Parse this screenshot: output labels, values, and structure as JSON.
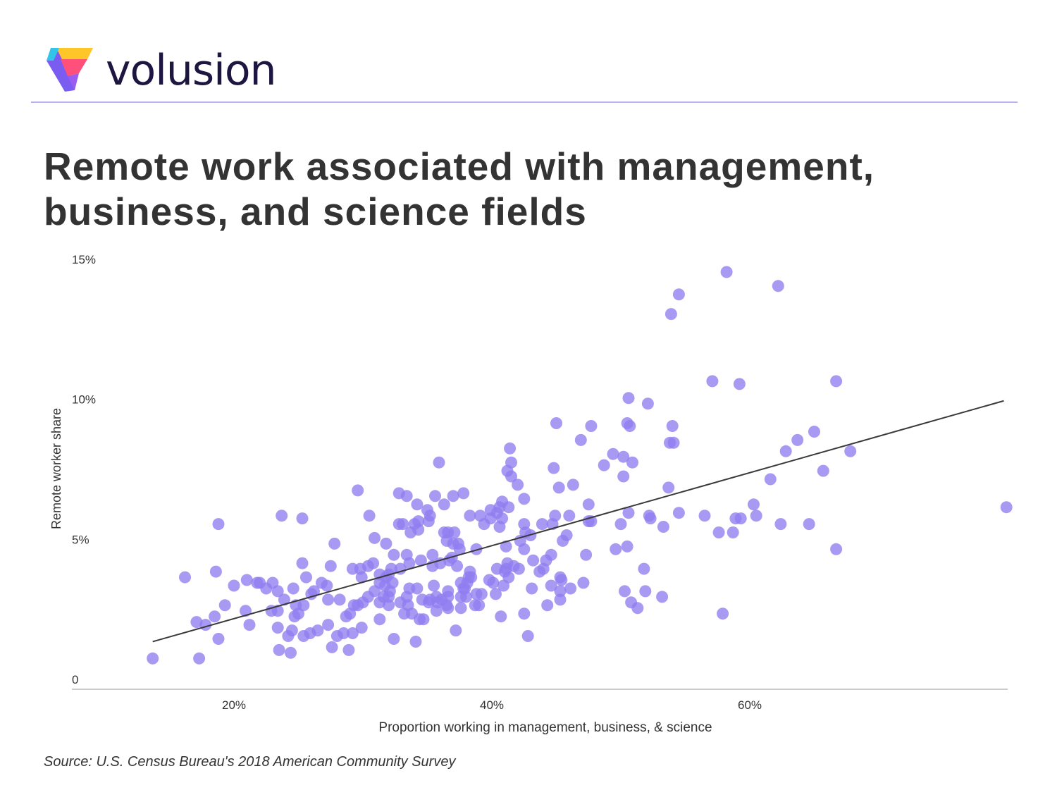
{
  "brand": {
    "name": "volusion"
  },
  "title": "Remote work associated with management, business, and science fields",
  "source": "Source: U.S. Census Bureau's 2018 American Community Survey",
  "colors": {
    "point": "#8f7cf0",
    "trendline": "#3a3a3a",
    "axis": "#cccccc",
    "text": "#333333",
    "rule": "#b8b3ee"
  },
  "chart_data": {
    "type": "scatter",
    "title": "Remote work associated with management, business, and science fields",
    "xlabel": "Proportion working in management, business, & science",
    "ylabel": "Remote worker share",
    "xlim": [
      7.5,
      80
    ],
    "ylim": [
      0,
      15
    ],
    "x_ticks": [
      {
        "value": 20,
        "label": "20%"
      },
      {
        "value": 40,
        "label": "40%"
      },
      {
        "value": 60,
        "label": "60%"
      }
    ],
    "y_ticks": [
      {
        "value": 0,
        "label": "0"
      },
      {
        "value": 5,
        "label": "5%"
      },
      {
        "value": 10,
        "label": "10%"
      },
      {
        "value": 15,
        "label": "15%"
      }
    ],
    "grid": false,
    "trendline": {
      "x": [
        13.7,
        79.7
      ],
      "y": [
        1.7,
        10.3
      ]
    },
    "points": [
      [
        58.2,
        14.9
      ],
      [
        62.2,
        14.4
      ],
      [
        54.5,
        14.1
      ],
      [
        53.9,
        13.4
      ],
      [
        57.1,
        11.0
      ],
      [
        59.2,
        10.9
      ],
      [
        66.7,
        11.0
      ],
      [
        50.6,
        10.4
      ],
      [
        52.1,
        10.2
      ],
      [
        45.0,
        9.5
      ],
      [
        47.7,
        9.4
      ],
      [
        50.5,
        9.5
      ],
      [
        50.7,
        9.4
      ],
      [
        54.0,
        9.4
      ],
      [
        65.0,
        9.2
      ],
      [
        63.7,
        8.9
      ],
      [
        46.9,
        8.9
      ],
      [
        53.8,
        8.8
      ],
      [
        54.1,
        8.8
      ],
      [
        41.4,
        8.6
      ],
      [
        62.8,
        8.5
      ],
      [
        67.8,
        8.5
      ],
      [
        49.4,
        8.4
      ],
      [
        50.2,
        8.3
      ],
      [
        50.9,
        8.1
      ],
      [
        48.7,
        8.0
      ],
      [
        35.9,
        8.1
      ],
      [
        41.5,
        8.1
      ],
      [
        41.2,
        7.8
      ],
      [
        44.8,
        7.9
      ],
      [
        65.7,
        7.8
      ],
      [
        41.5,
        7.6
      ],
      [
        50.2,
        7.6
      ],
      [
        61.6,
        7.5
      ],
      [
        42.0,
        7.3
      ],
      [
        46.3,
        7.3
      ],
      [
        45.2,
        7.2
      ],
      [
        53.7,
        7.2
      ],
      [
        29.6,
        7.1
      ],
      [
        32.8,
        7.0
      ],
      [
        33.4,
        6.9
      ],
      [
        35.6,
        6.9
      ],
      [
        37.0,
        6.9
      ],
      [
        37.8,
        7.0
      ],
      [
        42.5,
        6.8
      ],
      [
        40.8,
        6.7
      ],
      [
        34.2,
        6.6
      ],
      [
        36.3,
        6.6
      ],
      [
        40.6,
        6.5
      ],
      [
        41.3,
        6.5
      ],
      [
        47.5,
        6.6
      ],
      [
        60.3,
        6.6
      ],
      [
        79.9,
        6.5
      ],
      [
        35.0,
        6.4
      ],
      [
        39.9,
        6.4
      ],
      [
        40.4,
        6.3
      ],
      [
        30.5,
        6.2
      ],
      [
        35.2,
        6.2
      ],
      [
        38.3,
        6.2
      ],
      [
        39.1,
        6.2
      ],
      [
        44.9,
        6.2
      ],
      [
        46.0,
        6.2
      ],
      [
        50.6,
        6.3
      ],
      [
        52.2,
        6.2
      ],
      [
        54.5,
        6.3
      ],
      [
        56.5,
        6.2
      ],
      [
        60.5,
        6.2
      ],
      [
        23.7,
        6.2
      ],
      [
        25.3,
        6.1
      ],
      [
        34.3,
        6.0
      ],
      [
        35.1,
        6.0
      ],
      [
        39.9,
        6.1
      ],
      [
        40.8,
        6.1
      ],
      [
        52.3,
        6.1
      ],
      [
        58.9,
        6.1
      ],
      [
        59.3,
        6.1
      ],
      [
        18.8,
        5.9
      ],
      [
        32.8,
        5.9
      ],
      [
        33.1,
        5.9
      ],
      [
        34.0,
        5.9
      ],
      [
        39.4,
        5.9
      ],
      [
        40.6,
        5.8
      ],
      [
        42.5,
        5.9
      ],
      [
        43.9,
        5.9
      ],
      [
        44.7,
        5.9
      ],
      [
        47.5,
        6.0
      ],
      [
        47.7,
        6.0
      ],
      [
        50.0,
        5.9
      ],
      [
        53.3,
        5.8
      ],
      [
        62.4,
        5.9
      ],
      [
        64.6,
        5.9
      ],
      [
        33.7,
        5.6
      ],
      [
        34.3,
        5.7
      ],
      [
        36.3,
        5.6
      ],
      [
        36.6,
        5.6
      ],
      [
        37.1,
        5.6
      ],
      [
        42.6,
        5.6
      ],
      [
        43.0,
        5.5
      ],
      [
        45.8,
        5.5
      ],
      [
        57.6,
        5.6
      ],
      [
        58.7,
        5.6
      ],
      [
        30.9,
        5.4
      ],
      [
        36.5,
        5.3
      ],
      [
        37.0,
        5.2
      ],
      [
        37.4,
        5.2
      ],
      [
        42.2,
        5.3
      ],
      [
        45.5,
        5.3
      ],
      [
        31.8,
        5.2
      ],
      [
        27.8,
        5.2
      ],
      [
        38.8,
        5.0
      ],
      [
        41.1,
        5.1
      ],
      [
        42.5,
        5.0
      ],
      [
        49.6,
        5.0
      ],
      [
        50.5,
        5.1
      ],
      [
        66.7,
        5.0
      ],
      [
        37.5,
        5.0
      ],
      [
        25.3,
        4.5
      ],
      [
        32.4,
        4.8
      ],
      [
        33.4,
        4.8
      ],
      [
        36.9,
        4.7
      ],
      [
        35.4,
        4.8
      ],
      [
        36.7,
        4.6
      ],
      [
        43.2,
        4.6
      ],
      [
        44.2,
        4.6
      ],
      [
        44.6,
        4.8
      ],
      [
        47.3,
        4.8
      ],
      [
        27.5,
        4.4
      ],
      [
        29.2,
        4.3
      ],
      [
        29.8,
        4.3
      ],
      [
        30.4,
        4.4
      ],
      [
        30.8,
        4.5
      ],
      [
        32.2,
        4.3
      ],
      [
        32.9,
        4.3
      ],
      [
        33.6,
        4.5
      ],
      [
        34.5,
        4.6
      ],
      [
        35.4,
        4.4
      ],
      [
        36.0,
        4.5
      ],
      [
        37.3,
        4.4
      ],
      [
        38.3,
        4.2
      ],
      [
        40.4,
        4.3
      ],
      [
        41.1,
        4.3
      ],
      [
        41.2,
        4.5
      ],
      [
        41.7,
        4.4
      ],
      [
        42.1,
        4.3
      ],
      [
        43.7,
        4.2
      ],
      [
        44.0,
        4.3
      ],
      [
        51.8,
        4.3
      ],
      [
        16.2,
        4.0
      ],
      [
        18.6,
        4.2
      ],
      [
        25.6,
        4.0
      ],
      [
        29.9,
        4.0
      ],
      [
        31.3,
        4.1
      ],
      [
        31.8,
        4.0
      ],
      [
        32.0,
        4.1
      ],
      [
        38.2,
        4.0
      ],
      [
        38.4,
        4.0
      ],
      [
        40.1,
        3.8
      ],
      [
        41.0,
        4.2
      ],
      [
        41.3,
        4.0
      ],
      [
        45.3,
        4.0
      ],
      [
        21.0,
        3.9
      ],
      [
        22.0,
        3.8
      ],
      [
        23.0,
        3.8
      ],
      [
        24.6,
        3.6
      ],
      [
        26.8,
        3.8
      ],
      [
        27.2,
        3.7
      ],
      [
        31.3,
        3.8
      ],
      [
        31.7,
        3.7
      ],
      [
        32.3,
        3.8
      ],
      [
        35.5,
        3.7
      ],
      [
        37.6,
        3.8
      ],
      [
        37.9,
        3.6
      ],
      [
        38.1,
        3.8
      ],
      [
        40.9,
        3.7
      ],
      [
        43.1,
        3.6
      ],
      [
        44.6,
        3.7
      ],
      [
        46.1,
        3.6
      ],
      [
        47.1,
        3.8
      ],
      [
        20.0,
        3.7
      ],
      [
        22.5,
        3.6
      ],
      [
        23.4,
        3.5
      ],
      [
        30.9,
        3.5
      ],
      [
        32.1,
        3.5
      ],
      [
        33.6,
        3.6
      ],
      [
        34.2,
        3.6
      ],
      [
        36.6,
        3.5
      ],
      [
        37.8,
        3.6
      ],
      [
        38.8,
        3.4
      ],
      [
        39.2,
        3.4
      ],
      [
        40.3,
        3.4
      ],
      [
        45.3,
        3.5
      ],
      [
        50.3,
        3.5
      ],
      [
        51.9,
        3.5
      ],
      [
        26.0,
        3.4
      ],
      [
        30.4,
        3.3
      ],
      [
        31.6,
        3.3
      ],
      [
        32.0,
        3.3
      ],
      [
        33.4,
        3.3
      ],
      [
        34.6,
        3.2
      ],
      [
        35.2,
        3.2
      ],
      [
        35.7,
        3.3
      ],
      [
        36.1,
        3.2
      ],
      [
        36.6,
        3.3
      ],
      [
        37.6,
        3.3
      ],
      [
        38.0,
        3.3
      ],
      [
        53.2,
        3.3
      ],
      [
        23.9,
        3.2
      ],
      [
        24.8,
        3.0
      ],
      [
        25.4,
        3.0
      ],
      [
        27.3,
        3.2
      ],
      [
        28.2,
        3.2
      ],
      [
        30.0,
        3.1
      ],
      [
        31.3,
        3.1
      ],
      [
        32.0,
        3.0
      ],
      [
        32.9,
        3.1
      ],
      [
        33.5,
        3.0
      ],
      [
        35.1,
        3.1
      ],
      [
        35.8,
        3.1
      ],
      [
        36.5,
        3.0
      ],
      [
        37.6,
        2.9
      ],
      [
        38.7,
        3.0
      ],
      [
        44.3,
        3.0
      ],
      [
        45.3,
        3.2
      ],
      [
        50.8,
        3.1
      ],
      [
        19.3,
        3.0
      ],
      [
        20.9,
        2.8
      ],
      [
        22.9,
        2.8
      ],
      [
        23.4,
        2.8
      ],
      [
        24.7,
        2.6
      ],
      [
        25.0,
        2.7
      ],
      [
        28.7,
        2.6
      ],
      [
        29.0,
        2.7
      ],
      [
        29.3,
        3.0
      ],
      [
        29.6,
        3.0
      ],
      [
        33.2,
        2.7
      ],
      [
        33.8,
        2.7
      ],
      [
        34.4,
        2.5
      ],
      [
        35.7,
        2.8
      ],
      [
        36.6,
        2.9
      ],
      [
        39.0,
        3.0
      ],
      [
        40.7,
        2.6
      ],
      [
        42.5,
        2.7
      ],
      [
        51.3,
        2.9
      ],
      [
        57.9,
        2.7
      ],
      [
        17.1,
        2.4
      ],
      [
        17.8,
        2.3
      ],
      [
        18.5,
        2.6
      ],
      [
        21.2,
        2.3
      ],
      [
        23.4,
        2.2
      ],
      [
        24.5,
        2.1
      ],
      [
        26.5,
        2.1
      ],
      [
        27.3,
        2.3
      ],
      [
        28.0,
        1.9
      ],
      [
        28.5,
        2.0
      ],
      [
        29.2,
        2.0
      ],
      [
        29.9,
        2.2
      ],
      [
        31.3,
        2.5
      ],
      [
        34.7,
        2.5
      ],
      [
        37.2,
        2.1
      ],
      [
        42.8,
        1.9
      ],
      [
        18.8,
        1.8
      ],
      [
        23.5,
        1.4
      ],
      [
        24.2,
        1.9
      ],
      [
        25.4,
        1.9
      ],
      [
        25.9,
        2.0
      ],
      [
        27.6,
        1.5
      ],
      [
        28.9,
        1.4
      ],
      [
        32.4,
        1.8
      ],
      [
        34.1,
        1.7
      ],
      [
        13.7,
        1.1
      ],
      [
        17.3,
        1.1
      ],
      [
        24.4,
        1.3
      ],
      [
        39.8,
        3.9
      ],
      [
        45.4,
        3.9
      ],
      [
        21.8,
        3.8
      ],
      [
        26.2,
        3.5
      ]
    ]
  }
}
